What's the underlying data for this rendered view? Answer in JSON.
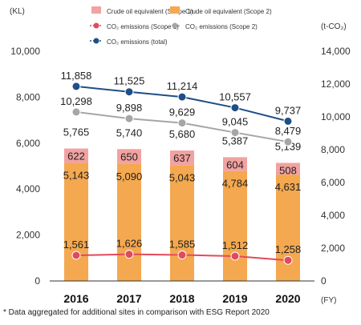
{
  "chart_data": {
    "type": "bar",
    "categories": [
      "2016",
      "2017",
      "2018",
      "2019",
      "2020"
    ],
    "x_unit": "(FY)",
    "left_axis": {
      "unit": "(KL)",
      "ticks": [
        "0",
        "2,000",
        "4,000",
        "6,000",
        "8,000",
        "10,000"
      ],
      "range": [
        0,
        10000
      ]
    },
    "right_axis": {
      "unit": "(t-CO₂)",
      "ticks": [
        "0",
        "2,000",
        "4,000",
        "6,000",
        "8,000",
        "10,000",
        "12,000",
        "14,000"
      ],
      "range": [
        0,
        14000
      ]
    },
    "bars": [
      {
        "name": "Crude oil equivalent (Scope 2)",
        "axis": "left",
        "color": "#f4a84f",
        "values": [
          5143,
          5090,
          5043,
          4784,
          4631
        ],
        "labels": [
          "5,143",
          "5,090",
          "5,043",
          "4,784",
          "4,631"
        ]
      },
      {
        "name": "Crude oil equivalent (Scope 1)",
        "axis": "left",
        "color": "#f2a2a0",
        "values": [
          622,
          650,
          637,
          604,
          508
        ],
        "labels": [
          "622",
          "650",
          "637",
          "604",
          "508"
        ]
      }
    ],
    "bar_totals": {
      "values": [
        5765,
        5740,
        5680,
        5387,
        5139
      ],
      "labels": [
        "5,765",
        "5,740",
        "5,680",
        "5,387",
        "5,139"
      ]
    },
    "lines": [
      {
        "name": "CO₂ emissions (total)",
        "axis": "right",
        "color": "#1f4f86",
        "values": [
          11858,
          11525,
          11214,
          10557,
          9737
        ],
        "labels": [
          "11,858",
          "11,525",
          "11,214",
          "10,557",
          "9,737"
        ]
      },
      {
        "name": "CO₂ emissions (Scope 2)",
        "axis": "right",
        "color": "#a6a6a6",
        "values": [
          10298,
          9898,
          9629,
          9045,
          8479
        ],
        "labels": [
          "10,298",
          "9,898",
          "9,629",
          "9,045",
          "8,479"
        ]
      },
      {
        "name": "CO₂ emissions (Scope 1)",
        "axis": "right",
        "color": "#e24a5b",
        "values": [
          1561,
          1626,
          1585,
          1512,
          1258
        ],
        "labels": [
          "1,561",
          "1,626",
          "1,585",
          "1,512",
          "1,258"
        ]
      }
    ],
    "legend": [
      {
        "label": "Crude oil equivalent (Scope 1)",
        "kind": "box",
        "color": "#f2a2a0"
      },
      {
        "label": "Crude oil equivalent (Scope 2)",
        "kind": "box",
        "color": "#f4a84f"
      },
      {
        "label": "CO₂ emissions (Scope 1)",
        "kind": "line",
        "color": "#e24a5b"
      },
      {
        "label": "CO₂ emissions (Scope 2)",
        "kind": "line",
        "color": "#a6a6a6"
      },
      {
        "label": "CO₂ emissions (total)",
        "kind": "line",
        "color": "#1f4f86"
      }
    ],
    "legend_placement": "top",
    "grid": false
  },
  "footnote": "* Data aggregated for additional sites in comparison with ESG Report 2020"
}
